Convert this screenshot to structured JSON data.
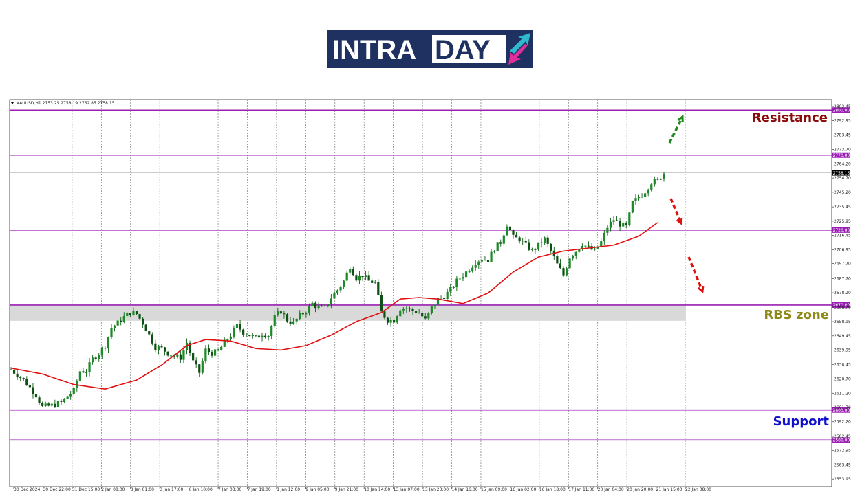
{
  "logo": {
    "text_a": "INTRA",
    "text_b": "DAY"
  },
  "chart_data": {
    "type": "candlestick",
    "symbol_line": "XAUUSD,H1  2753.25 2758.19 2752.85 2758.15",
    "current_price": 2758.15,
    "current_price_label": "2758.15",
    "ylim": [
      2549.0,
      2807.0
    ],
    "grid": true,
    "y_ticks": [
      "2802.45",
      "2792.95",
      "2783.45",
      "2773.70",
      "2764.20",
      "2754.70",
      "2745.20",
      "2735.45",
      "2725.95",
      "2716.45",
      "2706.95",
      "2697.70",
      "2687.70",
      "2678.20",
      "2668.70",
      "2658.95",
      "2649.45",
      "2639.95",
      "2630.45",
      "2620.70",
      "2611.20",
      "2601.70",
      "2592.20",
      "2582.45",
      "2572.95",
      "2563.45",
      "2553.95"
    ],
    "x_labels": [
      "30 Dec 2024",
      "30 Dec 22:00",
      "31 Dec 15:00",
      "2 Jan 08:00",
      "3 Jan 01:00",
      "3 Jan 17:00",
      "6 Jan 10:00",
      "7 Jan 03:00",
      "7 Jan 19:00",
      "8 Jan 12:00",
      "9 Jan 05:00",
      "9 Jan 21:00",
      "10 Jan 14:00",
      "13 Jan 07:00",
      "13 Jan 23:00",
      "14 Jan 16:00",
      "15 Jan 09:00",
      "16 Jan 02:00",
      "16 Jan 18:00",
      "17 Jan 11:00",
      "20 Jan 04:00",
      "20 Jan 20:00",
      "21 Jan 15:00",
      "22 Jan 08:00"
    ],
    "levels": [
      {
        "price": 2800.0,
        "label": "2800.00"
      },
      {
        "price": 2770.0,
        "label": "2770.00"
      },
      {
        "price": 2720.0,
        "label": "2720.00"
      },
      {
        "price": 2670.0,
        "label": "2670.00"
      },
      {
        "price": 2600.0,
        "label": "2600.00"
      },
      {
        "price": 2580.0,
        "label": "2580.00"
      }
    ],
    "rbs_zone": [
      2659.5,
      2670.0
    ],
    "annotations": [
      {
        "text": "Resistance",
        "color": "#8b0a0a"
      },
      {
        "text": "RBS zone",
        "color": "#8f8a1a"
      },
      {
        "text": "Support",
        "color": "#1010cc"
      }
    ],
    "price_path": [
      [
        0,
        2627
      ],
      [
        4,
        2620
      ],
      [
        8,
        2610
      ],
      [
        10,
        2602
      ],
      [
        13,
        2603
      ],
      [
        16,
        2605
      ],
      [
        18,
        2609
      ],
      [
        20,
        2613
      ],
      [
        22,
        2626
      ],
      [
        24,
        2626
      ],
      [
        26,
        2634
      ],
      [
        28,
        2638
      ],
      [
        30,
        2643
      ],
      [
        32,
        2655
      ],
      [
        34,
        2658
      ],
      [
        36,
        2662
      ],
      [
        38,
        2665
      ],
      [
        40,
        2664
      ],
      [
        42,
        2658
      ],
      [
        44,
        2650
      ],
      [
        46,
        2642
      ],
      [
        48,
        2641
      ],
      [
        50,
        2638
      ],
      [
        52,
        2636
      ],
      [
        54,
        2635
      ],
      [
        56,
        2645
      ],
      [
        58,
        2632
      ],
      [
        60,
        2625
      ],
      [
        62,
        2640
      ],
      [
        64,
        2638
      ],
      [
        66,
        2639
      ],
      [
        68,
        2645
      ],
      [
        70,
        2650
      ],
      [
        72,
        2656
      ],
      [
        74,
        2652
      ],
      [
        76,
        2650
      ],
      [
        78,
        2648
      ],
      [
        80,
        2651
      ],
      [
        82,
        2650
      ],
      [
        84,
        2662
      ],
      [
        86,
        2666
      ],
      [
        88,
        2660
      ],
      [
        90,
        2658
      ],
      [
        92,
        2663
      ],
      [
        94,
        2666
      ],
      [
        96,
        2671
      ],
      [
        98,
        2668
      ],
      [
        100,
        2668
      ],
      [
        102,
        2675
      ],
      [
        104,
        2680
      ],
      [
        106,
        2686
      ],
      [
        108,
        2696
      ],
      [
        110,
        2688
      ],
      [
        112,
        2690
      ],
      [
        114,
        2686
      ],
      [
        116,
        2685
      ],
      [
        118,
        2665
      ],
      [
        120,
        2660
      ],
      [
        122,
        2660
      ],
      [
        124,
        2668
      ],
      [
        126,
        2668
      ],
      [
        128,
        2666
      ],
      [
        130,
        2665
      ],
      [
        132,
        2660
      ],
      [
        134,
        2668
      ],
      [
        136,
        2674
      ],
      [
        138,
        2676
      ],
      [
        140,
        2680
      ],
      [
        142,
        2686
      ],
      [
        144,
        2690
      ],
      [
        146,
        2694
      ],
      [
        148,
        2699
      ],
      [
        150,
        2701
      ],
      [
        152,
        2700
      ],
      [
        154,
        2708
      ],
      [
        156,
        2712
      ],
      [
        158,
        2724
      ],
      [
        160,
        2715
      ],
      [
        162,
        2714
      ],
      [
        164,
        2710
      ],
      [
        166,
        2706
      ],
      [
        168,
        2710
      ],
      [
        170,
        2714
      ],
      [
        172,
        2706
      ],
      [
        174,
        2697
      ],
      [
        176,
        2690
      ],
      [
        178,
        2702
      ],
      [
        180,
        2706
      ],
      [
        182,
        2711
      ],
      [
        184,
        2708
      ],
      [
        186,
        2706
      ],
      [
        188,
        2712
      ],
      [
        190,
        2722
      ],
      [
        192,
        2727
      ],
      [
        194,
        2724
      ],
      [
        196,
        2722
      ],
      [
        198,
        2738
      ],
      [
        200,
        2742
      ],
      [
        202,
        2746
      ],
      [
        204,
        2752
      ],
      [
        206,
        2753
      ],
      [
        208,
        2758
      ]
    ],
    "ma_path": [
      [
        0,
        2628
      ],
      [
        10,
        2624
      ],
      [
        20,
        2617
      ],
      [
        30,
        2614
      ],
      [
        40,
        2620
      ],
      [
        48,
        2630
      ],
      [
        56,
        2643
      ],
      [
        62,
        2647
      ],
      [
        70,
        2646
      ],
      [
        78,
        2641
      ],
      [
        86,
        2640
      ],
      [
        94,
        2643
      ],
      [
        102,
        2650
      ],
      [
        110,
        2659
      ],
      [
        118,
        2665
      ],
      [
        124,
        2674
      ],
      [
        130,
        2675
      ],
      [
        136,
        2674
      ],
      [
        144,
        2671
      ],
      [
        152,
        2678
      ],
      [
        160,
        2692
      ],
      [
        168,
        2702
      ],
      [
        176,
        2706
      ],
      [
        184,
        2708
      ],
      [
        192,
        2710
      ],
      [
        200,
        2716
      ],
      [
        206,
        2725
      ]
    ]
  }
}
